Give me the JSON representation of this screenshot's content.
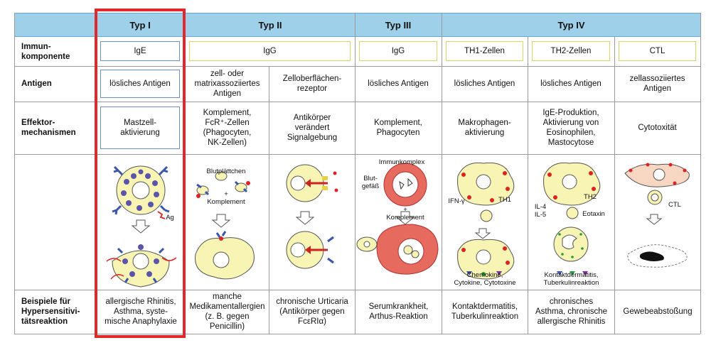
{
  "header": {
    "typ1": "Typ I",
    "typ2": "Typ II",
    "typ3": "Typ III",
    "typ4": "Typ IV"
  },
  "rows": {
    "immun": "Immun-\nkomponente",
    "antigen": "Antigen",
    "effektor": "Effektor-\nmechanismen",
    "beispiele": "Beispiele für\nHypersensitivi-\ntätsreaktion"
  },
  "immun": {
    "c1": "IgE",
    "c2": "IgG",
    "c4": "IgG",
    "c5": "TH1-Zellen",
    "c6": "TH2-Zellen",
    "c7": "CTL"
  },
  "antigen": {
    "c1": "lösliches Antigen",
    "c2": "zell- oder\nmatrixassoziiertes\nAntigen",
    "c3": "Zelloberflächen-\nrezeptor",
    "c4": "lösliches Antigen",
    "c5": "lösliches Antigen",
    "c6": "lösliches Antigen",
    "c7": "zellassoziiertes\nAntigen"
  },
  "effektor": {
    "c1": "Mastzell-\naktivierung",
    "c2": "Komplement,\nFcR⁺-Zellen\n(Phagocyten,\nNK-Zellen)",
    "c3": "Antikörper\nverändert\nSignalgebung",
    "c4": "Komplement,\nPhagocyten",
    "c5": "Makrophagen-\naktivierung",
    "c6": "IgE-Produktion,\nAktivierung von\nEosinophilen,\nMastocytose",
    "c7": "Cytotoxität"
  },
  "diagram_labels": {
    "ag": "Ag",
    "blutplaettchen": "Blutplättchen",
    "plus_komplement_2": "+\nKomplement",
    "immunkomplex": "Immunkomplex",
    "blutgefaess": "Blut-\ngefäß",
    "plus_komplement_3": "+\nKomplement",
    "ifn": "IFN-γ",
    "th1": "TH1",
    "chemokine": "Chemokine,\nCytokine, Cytotoxine",
    "th2": "TH2",
    "il": "IL-4\nIL-5",
    "eotaxin": "Eotaxin",
    "kontakt_label": "Kontaktdermatitis,\nTuberkulinreaktion",
    "ctl": "CTL"
  },
  "beispiele": {
    "c1": "allergische Rhinitis,\nAsthma, syste-\nmische Anaphylaxie",
    "c2": "manche\nMedikamentallergien\n(z. B. gegen\nPenicillin)",
    "c3": "chronische Urticaria\n(Antikörper gegen\nFcεRIα)",
    "c4": "Serumkrankheit,\nArthus-Reaktion",
    "c5": "Kontaktdermatitis,\nTuberkulinreaktion",
    "c6": "chronisches\nAsthma, chronische\nallergische Rhinitis",
    "c7": "Gewebeabstoßung"
  },
  "colors": {
    "header_bg": "#9fd0ea",
    "highlight": "#e0292f",
    "cell_yellow": "#f7f4b4",
    "cell_red": "#e76a5e",
    "antibody_blue": "#3b55a8"
  }
}
